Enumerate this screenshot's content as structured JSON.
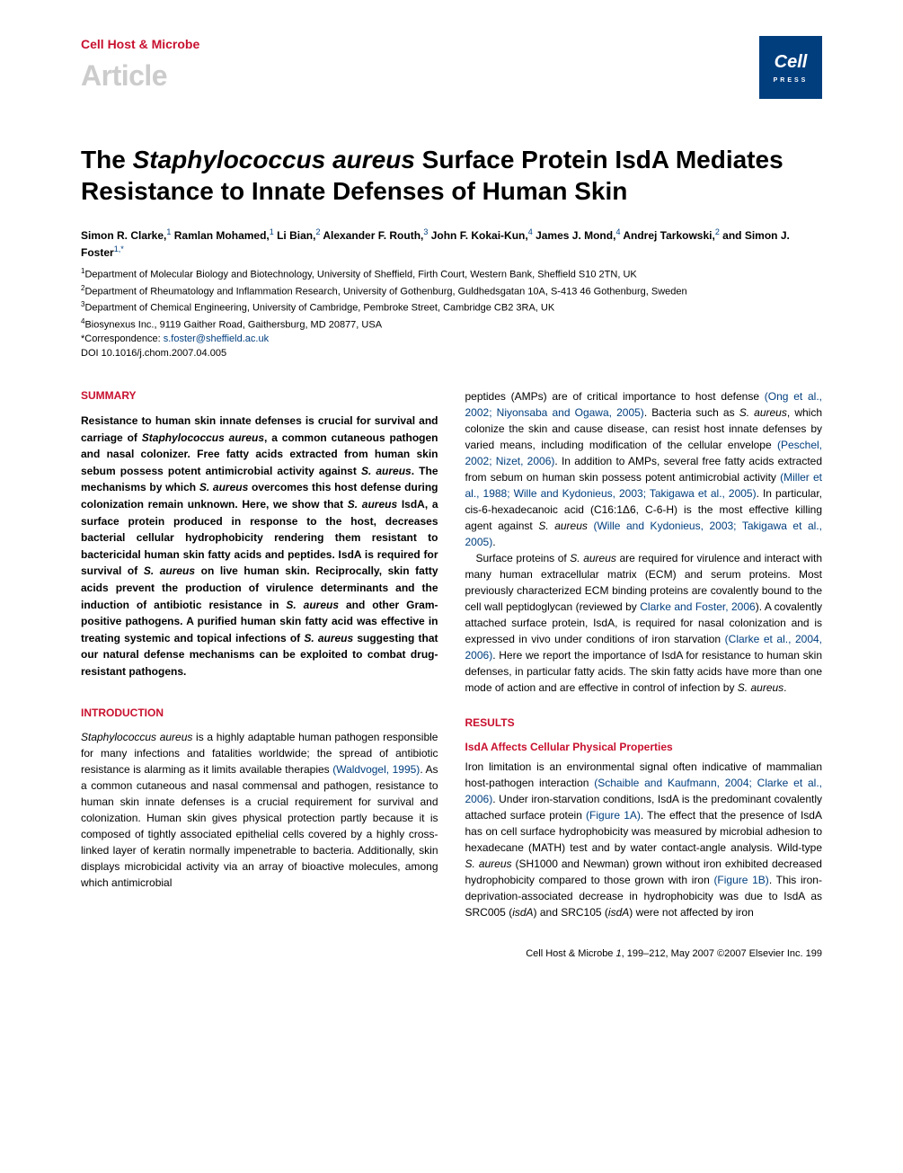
{
  "header": {
    "journal": "Cell Host & Microbe",
    "article_type": "Article",
    "logo_top": "Cell",
    "logo_bottom": "PRESS"
  },
  "title_parts": {
    "pre": "The ",
    "italic": "Staphylococcus aureus",
    "post": " Surface Protein IsdA Mediates Resistance to Innate Defenses of Human Skin"
  },
  "authors_html": "Simon R. Clarke,<sup>1</sup> Ramlan Mohamed,<sup>1</sup> Li Bian,<sup>2</sup> Alexander F. Routh,<sup>3</sup> John F. Kokai-Kun,<sup>4</sup> James J. Mond,<sup>4</sup> Andrej Tarkowski,<sup>2</sup> and Simon J. Foster<sup>1,*</sup>",
  "affiliations": {
    "a1": "Department of Molecular Biology and Biotechnology, University of Sheffield, Firth Court, Western Bank, Sheffield S10 2TN, UK",
    "a2": "Department of Rheumatology and Inflammation Research, University of Gothenburg, Guldhedsgatan 10A, S-413 46 Gothenburg, Sweden",
    "a3": "Department of Chemical Engineering, University of Cambridge, Pembroke Street, Cambridge CB2 3RA, UK",
    "a4": "Biosynexus Inc., 9119 Gaither Road, Gaithersburg, MD 20877, USA",
    "corr_label": "*Correspondence: ",
    "corr_email": "s.foster@sheffield.ac.uk",
    "doi": "DOI 10.1016/j.chom.2007.04.005"
  },
  "sections": {
    "summary_head": "SUMMARY",
    "summary_html": "Resistance to human skin innate defenses is crucial for survival and carriage of <em>Staphylococcus aureus</em>, a common cutaneous pathogen and nasal colonizer. Free fatty acids extracted from human skin sebum possess potent antimicrobial activity against <em>S. aureus</em>. The mechanisms by which <em>S. aureus</em> overcomes this host defense during colonization remain unknown. Here, we show that <em>S. aureus</em> IsdA, a surface protein produced in response to the host, decreases bacterial cellular hydrophobicity rendering them resistant to bactericidal human skin fatty acids and peptides. IsdA is required for survival of <em>S. aureus</em> on live human skin. Reciprocally, skin fatty acids prevent the production of virulence determinants and the induction of antibiotic resistance in <em>S. aureus</em> and other Gram-positive pathogens. A purified human skin fatty acid was effective in treating systemic and topical infections of <em>S. aureus</em> suggesting that our natural defense mechanisms can be exploited to combat drug-resistant pathogens.",
    "intro_head": "INTRODUCTION",
    "intro_html": "<em>Staphylococcus aureus</em> is a highly adaptable human pathogen responsible for many infections and fatalities worldwide; the spread of antibiotic resistance is alarming as it limits available therapies <span class=\"ref\">(Waldvogel, 1995)</span>. As a common cutaneous and nasal commensal and pathogen, resistance to human skin innate defenses is a crucial requirement for survival and colonization. Human skin gives physical protection partly because it is composed of tightly associated epithelial cells covered by a highly cross-linked layer of keratin normally impenetrable to bacteria. Additionally, skin displays microbicidal activity via an array of bioactive molecules, among which antimicrobial",
    "col2_p1_html": "peptides (AMPs) are of critical importance to host defense <span class=\"ref\">(Ong et al., 2002; Niyonsaba and Ogawa, 2005)</span>. Bacteria such as <em>S. aureus</em>, which colonize the skin and cause disease, can resist host innate defenses by varied means, including modification of the cellular envelope <span class=\"ref\">(Peschel, 2002; Nizet, 2006)</span>. In addition to AMPs, several free fatty acids extracted from sebum on human skin possess potent antimicrobial activity <span class=\"ref\">(Miller et al., 1988; Wille and Kydonieus, 2003; Takigawa et al., 2005)</span>. In particular, cis-6-hexadecanoic acid (C16:1Δ6, C-6-H) is the most effective killing agent against <em>S. aureus</em> <span class=\"ref\">(Wille and Kydonieus, 2003; Takigawa et al., 2005)</span>.",
    "col2_p2_html": "Surface proteins of <em>S. aureus</em> are required for virulence and interact with many human extracellular matrix (ECM) and serum proteins. Most previously characterized ECM binding proteins are covalently bound to the cell wall peptidoglycan (reviewed by <span class=\"ref\">Clarke and Foster, 2006</span>). A covalently attached surface protein, IsdA, is required for nasal colonization and is expressed in vivo under conditions of iron starvation <span class=\"ref\">(Clarke et al., 2004, 2006)</span>. Here we report the importance of IsdA for resistance to human skin defenses, in particular fatty acids. The skin fatty acids have more than one mode of action and are effective in control of infection by <em>S. aureus</em>.",
    "results_head": "RESULTS",
    "results_sub": "IsdA Affects Cellular Physical Properties",
    "results_html": "Iron limitation is an environmental signal often indicative of mammalian host-pathogen interaction <span class=\"ref\">(Schaible and Kaufmann, 2004; Clarke et al., 2006)</span>. Under iron-starvation conditions, IsdA is the predominant covalently attached surface protein <span class=\"ref\">(Figure 1A)</span>. The effect that the presence of IsdA has on cell surface hydrophobicity was measured by microbial adhesion to hexadecane (MATH) test and by water contact-angle analysis. Wild-type <em>S. aureus</em> (SH1000 and Newman) grown without iron exhibited decreased hydrophobicity compared to those grown with iron <span class=\"ref\">(Figure 1B)</span>. This iron-deprivation-associated decrease in hydrophobicity was due to IsdA as SRC005 (<em>isdA</em>) and SRC105 (<em>isdA</em>) were not affected by iron"
  },
  "footer": {
    "text_html": "Cell Host & Microbe <em>1</em>, 199–212, May 2007 ©2007 Elsevier Inc.  199"
  },
  "colors": {
    "brand_red": "#c8102e",
    "brand_blue": "#003e7e",
    "light_gray": "#cccccc"
  }
}
